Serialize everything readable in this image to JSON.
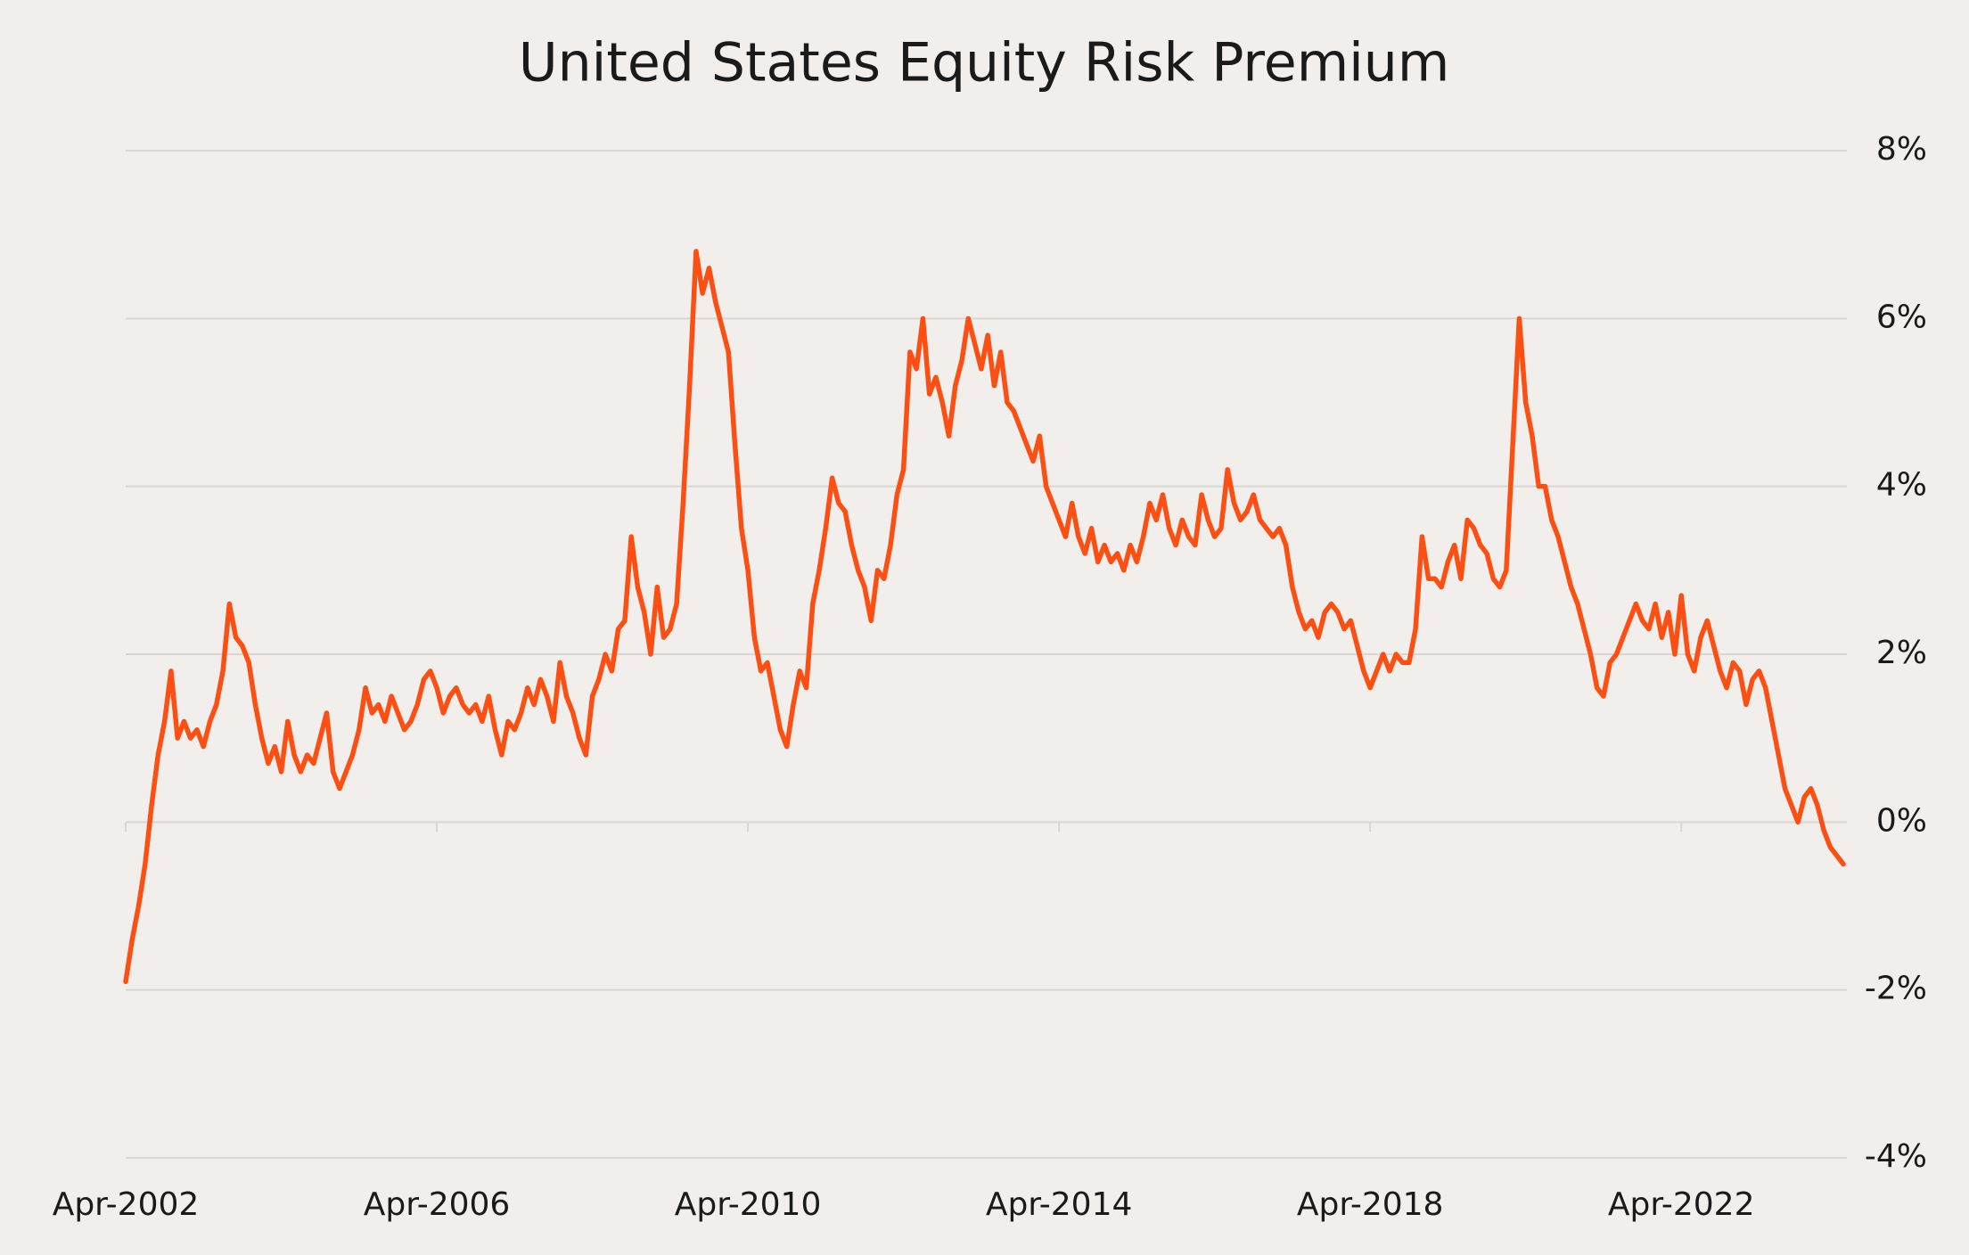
{
  "chart_data": {
    "type": "line",
    "title": "United States Equity Risk Premium",
    "x": [
      "2002-04",
      "2002-05",
      "2002-06",
      "2002-07",
      "2002-08",
      "2002-09",
      "2002-10",
      "2002-11",
      "2002-12",
      "2003-01",
      "2003-02",
      "2003-03",
      "2003-04",
      "2003-05",
      "2003-06",
      "2003-07",
      "2003-08",
      "2003-09",
      "2003-10",
      "2003-11",
      "2003-12",
      "2004-01",
      "2004-02",
      "2004-03",
      "2004-04",
      "2004-05",
      "2004-06",
      "2004-07",
      "2004-08",
      "2004-09",
      "2004-10",
      "2004-11",
      "2004-12",
      "2005-01",
      "2005-02",
      "2005-03",
      "2005-04",
      "2005-05",
      "2005-06",
      "2005-07",
      "2005-08",
      "2005-09",
      "2005-10",
      "2005-11",
      "2005-12",
      "2006-01",
      "2006-02",
      "2006-03",
      "2006-04",
      "2006-05",
      "2006-06",
      "2006-07",
      "2006-08",
      "2006-09",
      "2006-10",
      "2006-11",
      "2006-12",
      "2007-01",
      "2007-02",
      "2007-03",
      "2007-04",
      "2007-05",
      "2007-06",
      "2007-07",
      "2007-08",
      "2007-09",
      "2007-10",
      "2007-11",
      "2007-12",
      "2008-01",
      "2008-02",
      "2008-03",
      "2008-04",
      "2008-05",
      "2008-06",
      "2008-07",
      "2008-08",
      "2008-09",
      "2008-10",
      "2008-11",
      "2008-12",
      "2009-01",
      "2009-02",
      "2009-03",
      "2009-04",
      "2009-05",
      "2009-06",
      "2009-07",
      "2009-08",
      "2009-09",
      "2009-10",
      "2009-11",
      "2009-12",
      "2010-01",
      "2010-02",
      "2010-03",
      "2010-04",
      "2010-05",
      "2010-06",
      "2010-07",
      "2010-08",
      "2010-09",
      "2010-10",
      "2010-11",
      "2010-12",
      "2011-01",
      "2011-02",
      "2011-03",
      "2011-04",
      "2011-05",
      "2011-06",
      "2011-07",
      "2011-08",
      "2011-09",
      "2011-10",
      "2011-11",
      "2011-12",
      "2012-01",
      "2012-02",
      "2012-03",
      "2012-04",
      "2012-05",
      "2012-06",
      "2012-07",
      "2012-08",
      "2012-09",
      "2012-10",
      "2012-11",
      "2012-12",
      "2013-01",
      "2013-02",
      "2013-03",
      "2013-04",
      "2013-05",
      "2013-06",
      "2013-07",
      "2013-08",
      "2013-09",
      "2013-10",
      "2013-11",
      "2013-12",
      "2014-01",
      "2014-02",
      "2014-03",
      "2014-04",
      "2014-05",
      "2014-06",
      "2014-07",
      "2014-08",
      "2014-09",
      "2014-10",
      "2014-11",
      "2014-12",
      "2015-01",
      "2015-02",
      "2015-03",
      "2015-04",
      "2015-05",
      "2015-06",
      "2015-07",
      "2015-08",
      "2015-09",
      "2015-10",
      "2015-11",
      "2015-12",
      "2016-01",
      "2016-02",
      "2016-03",
      "2016-04",
      "2016-05",
      "2016-06",
      "2016-07",
      "2016-08",
      "2016-09",
      "2016-10",
      "2016-11",
      "2016-12",
      "2017-01",
      "2017-02",
      "2017-03",
      "2017-04",
      "2017-05",
      "2017-06",
      "2017-07",
      "2017-08",
      "2017-09",
      "2017-10",
      "2017-11",
      "2017-12",
      "2018-01",
      "2018-02",
      "2018-03",
      "2018-04",
      "2018-05",
      "2018-06",
      "2018-07",
      "2018-08",
      "2018-09",
      "2018-10",
      "2018-11",
      "2018-12",
      "2019-01",
      "2019-02",
      "2019-03",
      "2019-04",
      "2019-05",
      "2019-06",
      "2019-07",
      "2019-08",
      "2019-09",
      "2019-10",
      "2019-11",
      "2019-12",
      "2020-01",
      "2020-02",
      "2020-03",
      "2020-04",
      "2020-05",
      "2020-06",
      "2020-07",
      "2020-08",
      "2020-09",
      "2020-10",
      "2020-11",
      "2020-12",
      "2021-01",
      "2021-02",
      "2021-03",
      "2021-04",
      "2021-05",
      "2021-06",
      "2021-07",
      "2021-08",
      "2021-09",
      "2021-10",
      "2021-11",
      "2021-12",
      "2022-01",
      "2022-02",
      "2022-03",
      "2022-04",
      "2022-05",
      "2022-06",
      "2022-07",
      "2022-08",
      "2022-09",
      "2022-10",
      "2022-11",
      "2022-12",
      "2023-01",
      "2023-02",
      "2023-03",
      "2023-04",
      "2023-05",
      "2023-06",
      "2023-07",
      "2023-08",
      "2023-09",
      "2023-10",
      "2023-11",
      "2023-12",
      "2024-01",
      "2024-02",
      "2024-03",
      "2024-04",
      "2024-05"
    ],
    "series": [
      {
        "name": "United States Equity Risk Premium",
        "color": "#fc4f14",
        "values": [
          -1.9,
          -1.4,
          -1.0,
          -0.5,
          0.2,
          0.8,
          1.2,
          1.8,
          1.0,
          1.2,
          1.0,
          1.1,
          0.9,
          1.2,
          1.4,
          1.8,
          2.6,
          2.2,
          2.1,
          1.9,
          1.4,
          1.0,
          0.7,
          0.9,
          0.6,
          1.2,
          0.8,
          0.6,
          0.8,
          0.7,
          1.0,
          1.3,
          0.6,
          0.4,
          0.6,
          0.8,
          1.1,
          1.6,
          1.3,
          1.4,
          1.2,
          1.5,
          1.3,
          1.1,
          1.2,
          1.4,
          1.7,
          1.8,
          1.6,
          1.3,
          1.5,
          1.6,
          1.4,
          1.3,
          1.4,
          1.2,
          1.5,
          1.1,
          0.8,
          1.2,
          1.1,
          1.3,
          1.6,
          1.4,
          1.7,
          1.5,
          1.2,
          1.9,
          1.5,
          1.3,
          1.0,
          0.8,
          1.5,
          1.7,
          2.0,
          1.8,
          2.3,
          2.4,
          3.4,
          2.8,
          2.5,
          2.0,
          2.8,
          2.2,
          2.3,
          2.6,
          3.8,
          5.2,
          6.8,
          6.3,
          6.6,
          6.2,
          5.9,
          5.6,
          4.5,
          3.5,
          3.0,
          2.2,
          1.8,
          1.9,
          1.5,
          1.1,
          0.9,
          1.4,
          1.8,
          1.6,
          2.6,
          3.0,
          3.5,
          4.1,
          3.8,
          3.7,
          3.3,
          3.0,
          2.8,
          2.4,
          3.0,
          2.9,
          3.3,
          3.9,
          4.2,
          5.6,
          5.4,
          6.0,
          5.1,
          5.3,
          5.0,
          4.6,
          5.2,
          5.5,
          6.0,
          5.7,
          5.4,
          5.8,
          5.2,
          5.6,
          5.0,
          4.9,
          4.7,
          4.5,
          4.3,
          4.6,
          4.0,
          3.8,
          3.6,
          3.4,
          3.8,
          3.4,
          3.2,
          3.5,
          3.1,
          3.3,
          3.1,
          3.2,
          3.0,
          3.3,
          3.1,
          3.4,
          3.8,
          3.6,
          3.9,
          3.5,
          3.3,
          3.6,
          3.4,
          3.3,
          3.9,
          3.6,
          3.4,
          3.5,
          4.2,
          3.8,
          3.6,
          3.7,
          3.9,
          3.6,
          3.5,
          3.4,
          3.5,
          3.3,
          2.8,
          2.5,
          2.3,
          2.4,
          2.2,
          2.5,
          2.6,
          2.5,
          2.3,
          2.4,
          2.1,
          1.8,
          1.6,
          1.8,
          2.0,
          1.8,
          2.0,
          1.9,
          1.9,
          2.3,
          3.4,
          2.9,
          2.9,
          2.8,
          3.1,
          3.3,
          2.9,
          3.6,
          3.5,
          3.3,
          3.2,
          2.9,
          2.8,
          3.0,
          4.5,
          6.0,
          5.0,
          4.6,
          4.0,
          4.0,
          3.6,
          3.4,
          3.1,
          2.8,
          2.6,
          2.3,
          2.0,
          1.6,
          1.5,
          1.9,
          2.0,
          2.2,
          2.4,
          2.6,
          2.4,
          2.3,
          2.6,
          2.2,
          2.5,
          2.0,
          2.7,
          2.0,
          1.8,
          2.2,
          2.4,
          2.1,
          1.8,
          1.6,
          1.9,
          1.8,
          1.4,
          1.7,
          1.8,
          1.6,
          1.2,
          0.8,
          0.4,
          0.2,
          0.0,
          0.3,
          0.4,
          0.2,
          -0.1,
          -0.3,
          -0.4,
          -0.5
        ]
      }
    ],
    "xlim": [
      "2002-04",
      "2024-05"
    ],
    "xticks": [
      {
        "value": "2002-04",
        "label": "Apr-2002"
      },
      {
        "value": "2006-04",
        "label": "Apr-2006"
      },
      {
        "value": "2010-04",
        "label": "Apr-2010"
      },
      {
        "value": "2014-04",
        "label": "Apr-2014"
      },
      {
        "value": "2018-04",
        "label": "Apr-2018"
      },
      {
        "value": "2022-04",
        "label": "Apr-2022"
      }
    ],
    "ylim": [
      -4,
      8
    ],
    "yticks": [
      {
        "value": -4,
        "label": "-4%"
      },
      {
        "value": -2,
        "label": "-2%"
      },
      {
        "value": 0,
        "label": "0%"
      },
      {
        "value": 2,
        "label": "2%"
      },
      {
        "value": 4,
        "label": "4%"
      },
      {
        "value": 6,
        "label": "6%"
      },
      {
        "value": 8,
        "label": "8%"
      }
    ],
    "grid": true
  }
}
